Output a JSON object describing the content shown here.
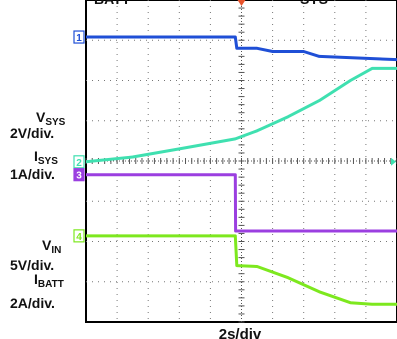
{
  "chart_data": {
    "type": "line",
    "title_fragments": [
      "BATT",
      "SYS"
    ],
    "xlabel": "2s/div",
    "x_divisions": 10,
    "y_divisions": 8,
    "grid": true,
    "series": [
      {
        "name": "VSYS",
        "scale": "2V/div.",
        "marker": "1",
        "color": "#1f4fd6",
        "x": [
          0,
          4.8,
          4.85,
          5.5,
          6.0,
          7.0,
          7.5,
          10
        ],
        "y": [
          7.08,
          7.08,
          6.8,
          6.8,
          6.72,
          6.72,
          6.6,
          6.52
        ]
      },
      {
        "name": "ISYS",
        "scale": "1A/div.",
        "marker": "2",
        "color": "#3fe0b0",
        "x": [
          0,
          1.5,
          3,
          4.8,
          5.5,
          6.5,
          7.5,
          8.5,
          9.2,
          10
        ],
        "y": [
          3.98,
          4.1,
          4.3,
          4.55,
          4.75,
          5.1,
          5.5,
          6.0,
          6.3,
          6.3
        ]
      },
      {
        "name": "VIN",
        "scale": "5V/div.",
        "marker": "3",
        "color": "#9b3fe0",
        "x": [
          0,
          4.8,
          4.81,
          10
        ],
        "y": [
          3.66,
          3.66,
          2.26,
          2.26
        ]
      },
      {
        "name": "IBATT",
        "scale": "2A/div.",
        "marker": "4",
        "color": "#7de81e",
        "x": [
          0,
          4.8,
          4.85,
          5.5,
          6.5,
          7.5,
          8.5,
          9.2,
          10
        ],
        "y": [
          2.14,
          2.14,
          1.4,
          1.38,
          1.1,
          0.75,
          0.48,
          0.44,
          0.44
        ]
      }
    ],
    "labels": [
      {
        "text": "V",
        "sub": "SYS",
        "line2": "2V/div."
      },
      {
        "text": "I",
        "sub": "SYS",
        "line2": "1A/div."
      },
      {
        "text": "V",
        "sub": "IN",
        "line2": "5V/div."
      },
      {
        "text": "I",
        "sub": "BATT",
        "line2": "2A/div."
      }
    ]
  }
}
